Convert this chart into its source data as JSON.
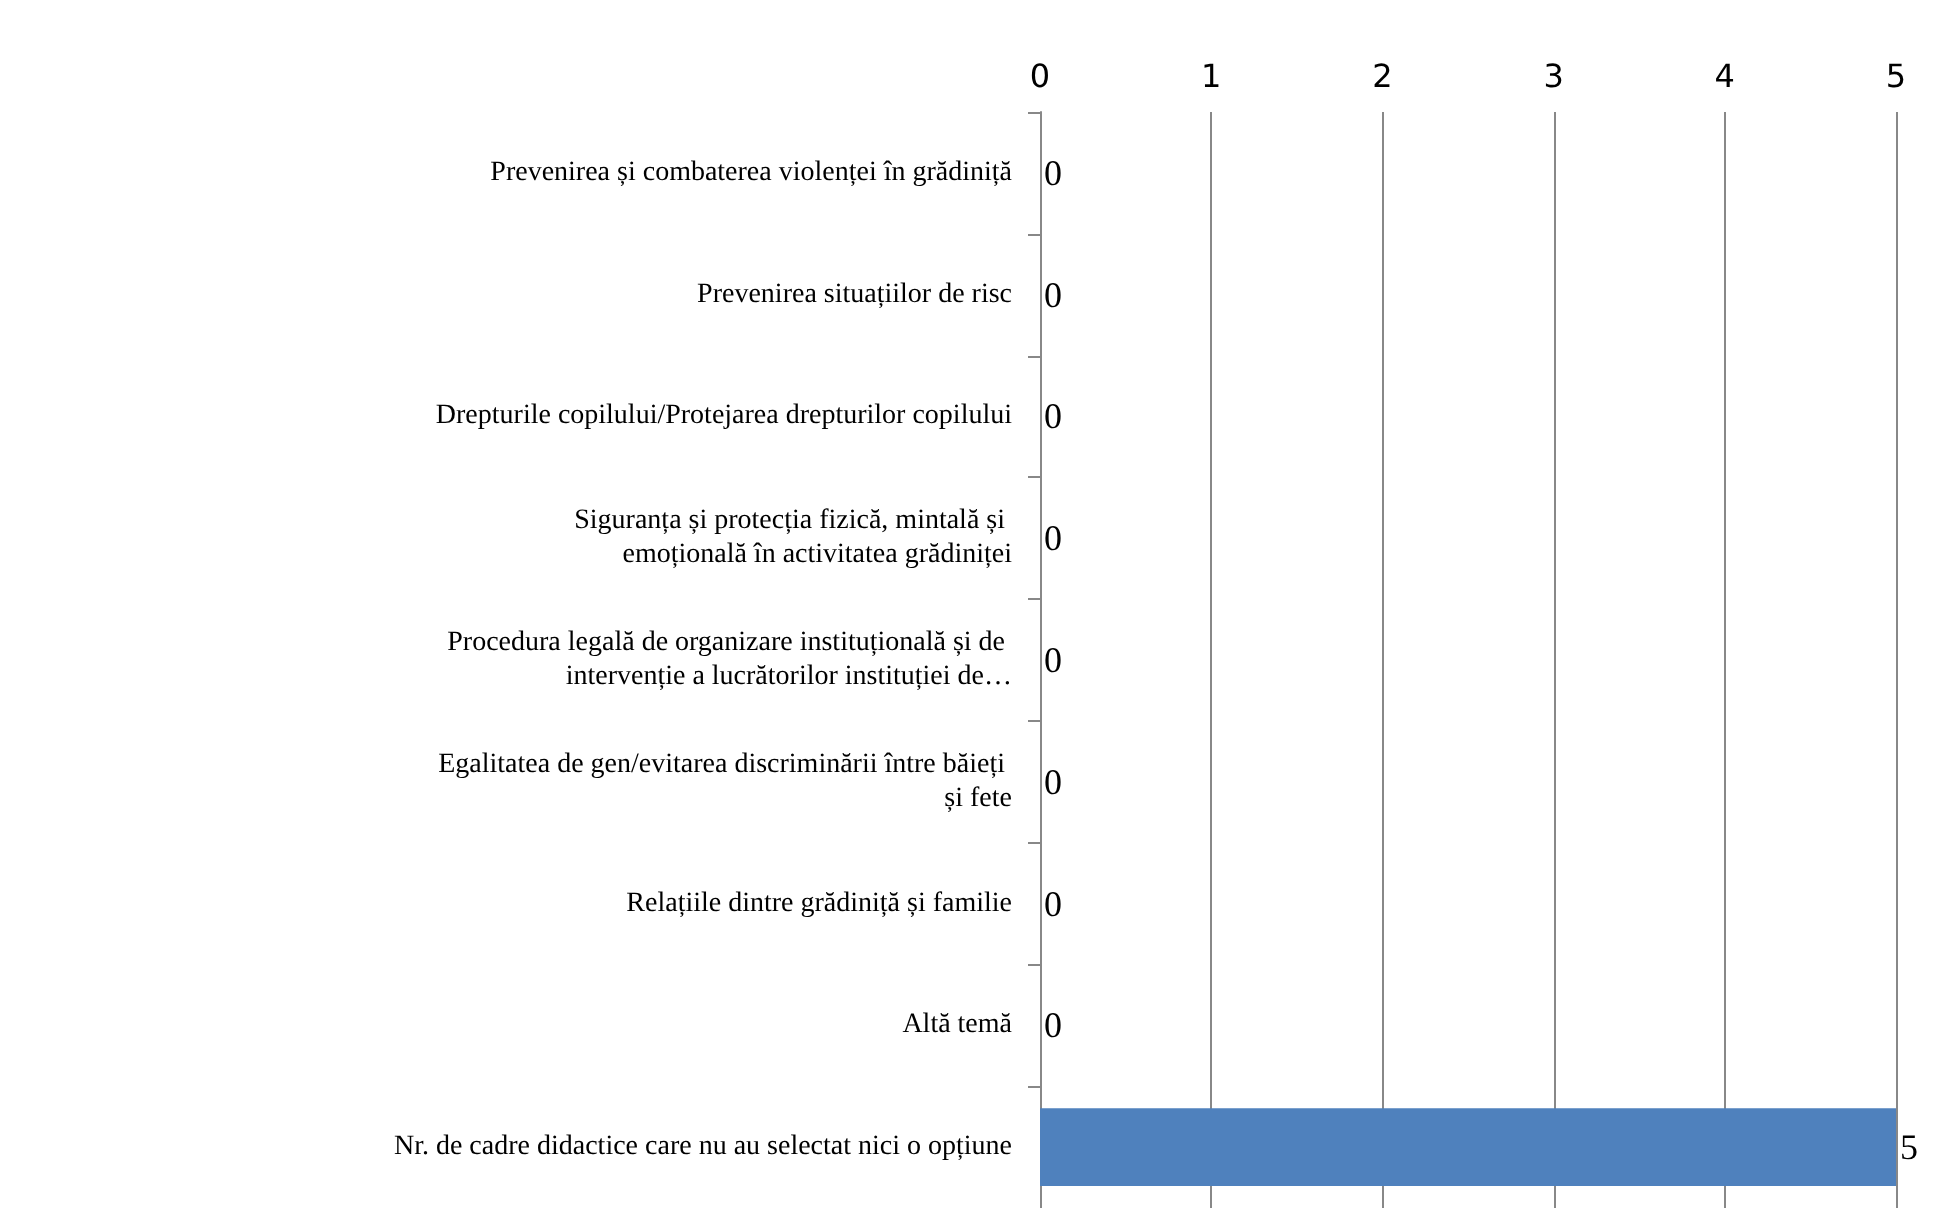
{
  "chart_data": {
    "type": "bar",
    "orientation": "horizontal",
    "categories": [
      "Prevenirea și combaterea violenței în grădiniță",
      "Prevenirea situațiilor de risc",
      "Drepturile copilului/Protejarea drepturilor copilului",
      "Siguranța și protecția fizică, mintală și emoțională în activitatea grădiniței",
      "Procedura legală de organizare instituțională și de intervenție a lucrătorilor instituției de…",
      "Egalitatea de gen/evitarea discriminării între băieți și fete",
      "Relațiile dintre grădiniță și familie",
      "Altă temă",
      "Nr. de cadre didactice care nu au selectat nici o opțiune"
    ],
    "values": [
      0,
      0,
      0,
      0,
      0,
      0,
      0,
      0,
      5
    ],
    "color": "#4f81bd",
    "xlim": [
      0,
      5
    ],
    "xticks": [
      0,
      1,
      2,
      3,
      4,
      5
    ],
    "grid": "x",
    "data_labels": true
  }
}
